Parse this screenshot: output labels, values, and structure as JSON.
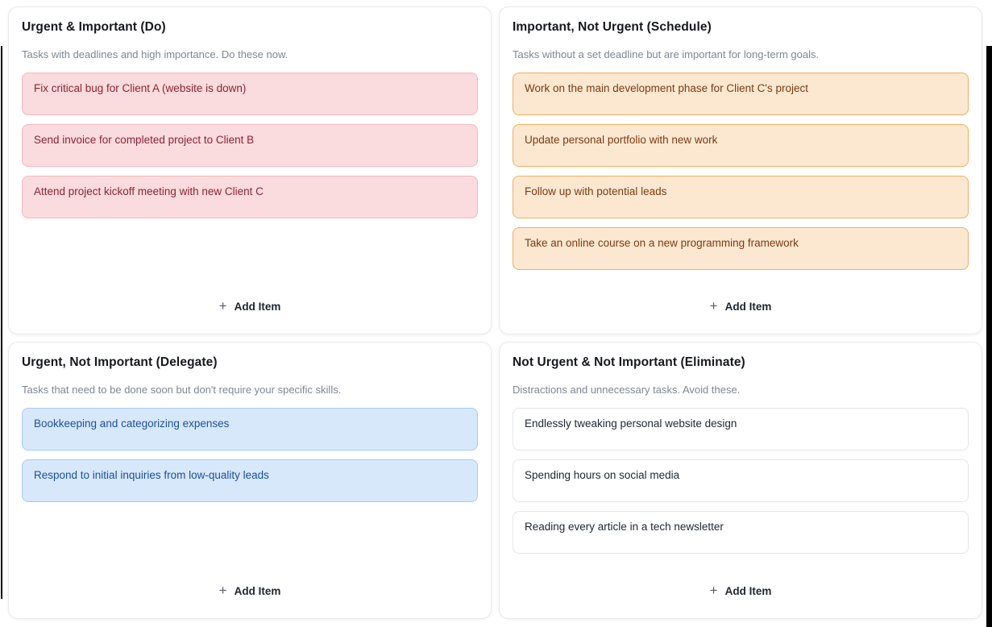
{
  "quadrants": [
    {
      "key": "do",
      "title": "Urgent & Important (Do)",
      "description": "Tasks with deadlines and high importance. Do these now.",
      "item_colors": {
        "background": "#fadbde",
        "border": "#f4b9c1",
        "text": "#8c2333"
      },
      "items": [
        "Fix critical bug for Client A (website is down)",
        "Send invoice for completed project to Client B",
        "Attend project kickoff meeting with new Client C"
      ],
      "add_label": "Add Item",
      "add_icon": "+"
    },
    {
      "key": "schedule",
      "title": "Important, Not Urgent (Schedule)",
      "description": "Tasks without a set deadline but are important for long-term goals.",
      "item_colors": {
        "background": "#fce8d1",
        "border": "#f0ae66",
        "text": "#7c3a10"
      },
      "items": [
        "Work on the main development phase for Client C's project",
        "Update personal portfolio with new work",
        "Follow up with potential leads",
        "Take an online course on a new programming framework"
      ],
      "add_label": "Add Item",
      "add_icon": "+"
    },
    {
      "key": "delegate",
      "title": "Urgent, Not Important (Delegate)",
      "description": "Tasks that need to be done soon but don't require your specific skills.",
      "item_colors": {
        "background": "#d8e8fb",
        "border": "#a6cbf3",
        "text": "#1a4f9e"
      },
      "items": [
        "Bookkeeping and categorizing expenses",
        "Respond to initial inquiries from low-quality leads"
      ],
      "add_label": "Add Item",
      "add_icon": "+"
    },
    {
      "key": "eliminate",
      "title": "Not Urgent & Not Important (Eliminate)",
      "description": "Distractions and unnecessary tasks. Avoid these.",
      "item_colors": {
        "background": "#ffffff",
        "border": "#e2e6ea",
        "text": "#212936"
      },
      "items": [
        "Endlessly tweaking personal website design",
        "Spending hours on social media",
        "Reading every article in a tech newsletter"
      ],
      "add_label": "Add Item",
      "add_icon": "+"
    }
  ]
}
